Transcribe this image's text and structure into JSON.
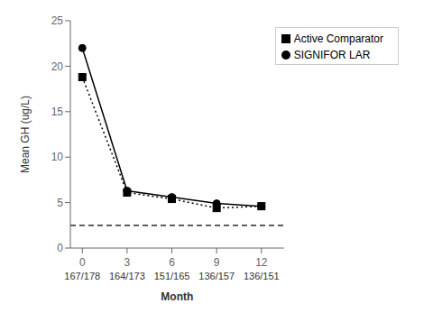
{
  "chart_data": {
    "type": "line",
    "x": [
      0,
      3,
      6,
      9,
      12
    ],
    "series": [
      {
        "name": "SIGNIFOR LAR",
        "color": "#000000",
        "values": [
          22.0,
          6.3,
          5.6,
          4.9,
          4.6
        ],
        "marker": "circle",
        "line_style": "solid"
      },
      {
        "name": "Active Comparator",
        "color": "#000000",
        "values": [
          18.8,
          6.1,
          5.4,
          4.4,
          4.6
        ],
        "marker": "square",
        "line_style": "dotted"
      }
    ],
    "hlines": [
      {
        "y": 2.5,
        "color": "#000000",
        "line_style": "dashed"
      }
    ],
    "annotations": [
      {
        "x": 0,
        "text": "167/178"
      },
      {
        "x": 3,
        "text": "164/173"
      },
      {
        "x": 6,
        "text": "151/165"
      },
      {
        "x": 9,
        "text": "136/157"
      },
      {
        "x": 12,
        "text": "136/151"
      }
    ],
    "ylabel": "Mean GH (ug/L)",
    "xlabel": "Month",
    "xlim": [
      -0.8,
      13.5
    ],
    "xticks": [
      0,
      3,
      6,
      9,
      12
    ],
    "ylim": [
      0,
      25
    ],
    "yticks": [
      0,
      5,
      10,
      15,
      20,
      25
    ],
    "legend": "upper right",
    "grid": false
  }
}
